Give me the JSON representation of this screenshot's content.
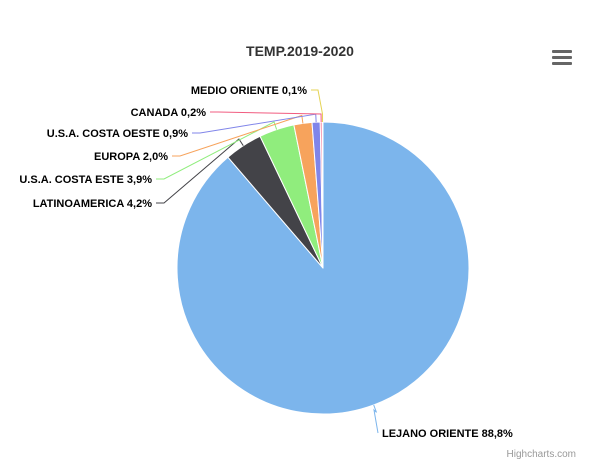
{
  "menu": {
    "icon": "hamburger-menu-icon"
  },
  "credits": "Highcharts.com",
  "chart_data": {
    "type": "pie",
    "title": "TEMP.2019-2020",
    "slices": [
      {
        "name": "LEJANO ORIENTE",
        "label": "LEJANO ORIENTE 88,8%",
        "value": 88.8,
        "color": "#7cb5ec"
      },
      {
        "name": "LATINOAMERICA",
        "label": "LATINOAMERICA 4,2%",
        "value": 4.2,
        "color": "#434348"
      },
      {
        "name": "U.S.A. COSTA ESTE",
        "label": "U.S.A. COSTA ESTE 3,9%",
        "value": 3.9,
        "color": "#90ed7d"
      },
      {
        "name": "EUROPA",
        "label": "EUROPA 2,0%",
        "value": 2.0,
        "color": "#f7a35c"
      },
      {
        "name": "U.S.A. COSTA OESTE",
        "label": "U.S.A. COSTA OESTE 0,9%",
        "value": 0.9,
        "color": "#8085e9"
      },
      {
        "name": "CANADA",
        "label": "CANADA 0,2%",
        "value": 0.2,
        "color": "#f15c80"
      },
      {
        "name": "MEDIO ORIENTE",
        "label": "MEDIO ORIENTE 0,1%",
        "value": 0.1,
        "color": "#e4d354"
      }
    ]
  }
}
